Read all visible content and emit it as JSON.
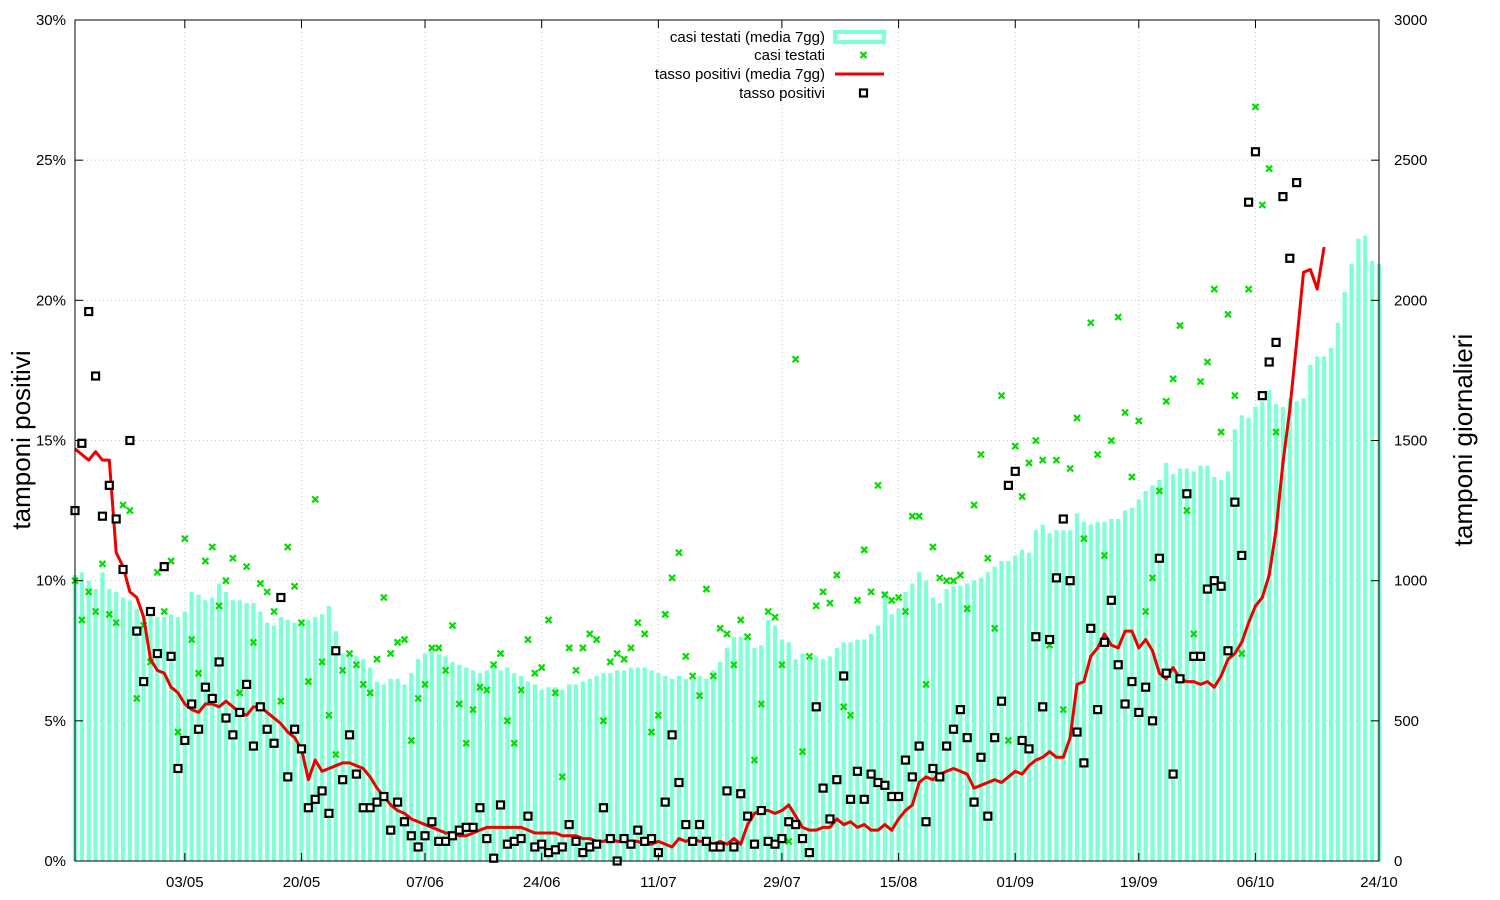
{
  "chart_data": {
    "type": "bar+line+scatter",
    "title": "",
    "ylabel_left": "tamponi positivi",
    "ylabel_right": "tamponi giornalieri",
    "ylim_left": [
      0,
      30
    ],
    "ylim_right": [
      0,
      3000
    ],
    "grid": true,
    "legend_position": "top-center",
    "x_start": "2020-04-17",
    "x_end": "2020-10-24",
    "x_ticks": [
      "03/05",
      "20/05",
      "07/06",
      "24/06",
      "11/07",
      "29/07",
      "15/08",
      "01/09",
      "19/09",
      "06/10",
      "24/10"
    ],
    "y_left_ticks": [
      "0%",
      "5%",
      "10%",
      "15%",
      "20%",
      "25%",
      "30%"
    ],
    "y_right_ticks": [
      "0",
      "500",
      "1000",
      "1500",
      "2000",
      "2500",
      "3000"
    ],
    "colors": {
      "casi_testati_media": "#7fffd4",
      "casi_testati": "#00dd00",
      "tasso_positivi_media": "#ee0000",
      "tasso_positivi": "#000000"
    },
    "series": [
      {
        "name": "casi testati (media 7gg)",
        "type": "bar",
        "axis": "right",
        "values": [
          1020,
          1030,
          1000,
          970,
          1030,
          970,
          960,
          940,
          930,
          900,
          880,
          880,
          870,
          870,
          880,
          870,
          890,
          960,
          950,
          930,
          940,
          990,
          960,
          930,
          930,
          920,
          920,
          890,
          850,
          840,
          870,
          860,
          850,
          840,
          860,
          870,
          880,
          910,
          820,
          740,
          730,
          730,
          720,
          690,
          640,
          630,
          650,
          650,
          630,
          670,
          720,
          740,
          750,
          740,
          730,
          710,
          700,
          690,
          680,
          670,
          680,
          690,
          680,
          690,
          670,
          660,
          640,
          630,
          610,
          620,
          620,
          610,
          630,
          630,
          640,
          650,
          660,
          670,
          670,
          680,
          680,
          690,
          690,
          690,
          680,
          670,
          660,
          650,
          660,
          650,
          650,
          660,
          650,
          680,
          710,
          760,
          800,
          800,
          790,
          760,
          770,
          860,
          840,
          790,
          780,
          720,
          740,
          720,
          730,
          720,
          730,
          760,
          780,
          780,
          790,
          790,
          810,
          840,
          960,
          880,
          900,
          960,
          990,
          1030,
          1000,
          940,
          920,
          970,
          980,
          980,
          990,
          1000,
          1010,
          1030,
          1050,
          1070,
          1070,
          1090,
          1110,
          1100,
          1180,
          1200,
          1170,
          1180,
          1180,
          1180,
          1240,
          1210,
          1200,
          1210,
          1210,
          1220,
          1220,
          1250,
          1260,
          1290,
          1320,
          1340,
          1360,
          1420,
          1380,
          1400,
          1400,
          1390,
          1410,
          1410,
          1370,
          1360,
          1390,
          1540,
          1590,
          1580,
          1620,
          1640,
          1680,
          1630,
          1620,
          1650,
          1640,
          1650,
          1770,
          1800,
          1800,
          1830,
          1920,
          2030,
          2130,
          2220,
          2230,
          2140,
          2130
        ]
      },
      {
        "name": "casi testati",
        "type": "scatter",
        "axis": "right",
        "marker": "x",
        "values": [
          1000,
          860,
          960,
          890,
          1060,
          880,
          850,
          1270,
          1250,
          580,
          840,
          710,
          1030,
          890,
          1070,
          460,
          1150,
          790,
          670,
          1070,
          1120,
          910,
          1000,
          1080,
          600,
          1050,
          780,
          990,
          960,
          890,
          570,
          1120,
          980,
          850,
          640,
          1290,
          710,
          520,
          380,
          680,
          740,
          700,
          630,
          600,
          720,
          940,
          740,
          780,
          790,
          430,
          580,
          630,
          760,
          760,
          680,
          840,
          560,
          420,
          540,
          620,
          610,
          700,
          740,
          500,
          420,
          610,
          790,
          670,
          690,
          860,
          600,
          300,
          760,
          680,
          760,
          810,
          790,
          500,
          710,
          740,
          720,
          760,
          850,
          810,
          460,
          520,
          880,
          1010,
          1100,
          730,
          660,
          590,
          970,
          660,
          830,
          810,
          700,
          860,
          800,
          360,
          560,
          890,
          870,
          700,
          70,
          1790,
          390,
          730,
          910,
          960,
          920,
          1020,
          550,
          520,
          930,
          1110,
          960,
          1340,
          950,
          930,
          940,
          890,
          1230,
          1230,
          630,
          1120,
          1010,
          1000,
          1000,
          1020,
          900,
          1270,
          1450,
          1080,
          830,
          1660,
          430,
          1480,
          1300,
          1420,
          1500,
          1430,
          770,
          1430,
          540,
          1400,
          1580,
          1150,
          1920,
          1450,
          1090,
          1500,
          1940,
          1600,
          1370,
          1570,
          890,
          1010,
          1320,
          1640,
          1720,
          1910,
          1250,
          810,
          1710,
          1780,
          2040,
          1530,
          1950,
          1660,
          740,
          2040,
          2690,
          2340,
          2470,
          1530
        ]
      },
      {
        "name": "tasso positivi (media 7gg)",
        "type": "line",
        "axis": "left",
        "values": [
          14.7,
          14.5,
          14.3,
          14.6,
          14.3,
          14.3,
          11.0,
          10.5,
          9.6,
          9.4,
          8.7,
          7.2,
          6.8,
          6.7,
          6.2,
          6.0,
          5.6,
          5.4,
          5.3,
          5.6,
          5.6,
          5.5,
          5.7,
          5.5,
          5.3,
          5.2,
          5.5,
          5.5,
          5.3,
          5.1,
          4.9,
          4.6,
          4.4,
          4.0,
          2.9,
          3.6,
          3.2,
          3.3,
          3.4,
          3.5,
          3.5,
          3.4,
          3.3,
          3.0,
          2.6,
          2.3,
          2.0,
          1.8,
          1.7,
          1.5,
          1.4,
          1.3,
          1.2,
          1.1,
          1.0,
          1.0,
          0.9,
          0.9,
          1.0,
          1.1,
          1.2,
          1.2,
          1.2,
          1.2,
          1.2,
          1.2,
          1.1,
          1.0,
          1.0,
          1.0,
          1.0,
          0.9,
          0.9,
          0.9,
          0.8,
          0.8,
          0.7,
          0.7,
          0.8,
          0.7,
          0.7,
          0.7,
          0.7,
          0.6,
          0.6,
          0.7,
          0.6,
          0.5,
          0.8,
          0.7,
          0.8,
          0.7,
          0.7,
          0.6,
          0.7,
          0.6,
          0.8,
          0.6,
          1.3,
          1.7,
          1.8,
          1.8,
          1.7,
          1.8,
          2.0,
          1.6,
          1.2,
          1.1,
          1.1,
          1.2,
          1.2,
          1.5,
          1.3,
          1.4,
          1.2,
          1.3,
          1.1,
          1.1,
          1.3,
          1.1,
          1.5,
          1.8,
          2.0,
          2.8,
          3.0,
          2.9,
          3.1,
          3.2,
          3.3,
          3.2,
          3.1,
          2.6,
          2.7,
          2.8,
          2.9,
          2.8,
          3.0,
          3.2,
          3.1,
          3.4,
          3.6,
          3.7,
          3.9,
          3.7,
          3.7,
          4.4,
          6.3,
          6.4,
          7.3,
          7.6,
          8.1,
          7.7,
          7.6,
          8.2,
          8.2,
          7.6,
          7.9,
          7.5,
          6.7,
          6.5,
          6.9,
          6.5,
          6.4,
          6.4,
          6.3,
          6.4,
          6.2,
          6.6,
          7.2,
          7.4,
          7.8,
          8.5,
          9.1,
          9.4,
          10.2,
          11.8,
          14.2,
          16.1,
          18.5,
          21.0,
          21.1,
          20.4,
          21.9
        ]
      },
      {
        "name": "tasso positivi",
        "type": "scatter",
        "axis": "left",
        "marker": "square",
        "values": [
          12.5,
          14.9,
          19.6,
          17.3,
          12.3,
          13.4,
          12.2,
          10.4,
          15.0,
          8.2,
          6.4,
          8.9,
          7.4,
          10.5,
          7.3,
          3.3,
          4.3,
          5.6,
          4.7,
          6.2,
          5.8,
          7.1,
          5.1,
          4.5,
          5.3,
          6.3,
          4.1,
          5.5,
          4.7,
          4.2,
          9.4,
          3.0,
          4.7,
          4.0,
          1.9,
          2.2,
          2.5,
          1.7,
          7.5,
          2.9,
          4.5,
          3.1,
          1.9,
          1.9,
          2.1,
          2.3,
          1.1,
          2.1,
          1.4,
          0.9,
          0.5,
          0.9,
          1.4,
          0.7,
          0.7,
          0.9,
          1.1,
          1.2,
          1.2,
          1.9,
          0.8,
          0.1,
          2.0,
          0.6,
          0.7,
          0.8,
          1.6,
          0.5,
          0.6,
          0.3,
          0.4,
          0.5,
          1.3,
          0.7,
          0.3,
          0.5,
          0.6,
          1.9,
          0.8,
          0.0,
          0.8,
          0.6,
          1.1,
          0.7,
          0.8,
          0.3,
          2.1,
          4.5,
          2.8,
          1.3,
          0.7,
          1.3,
          0.7,
          0.5,
          0.5,
          2.5,
          0.5,
          2.4,
          1.6,
          0.6,
          1.8,
          0.7,
          0.6,
          0.8,
          1.4,
          1.3,
          0.8,
          0.3,
          5.5,
          2.6,
          1.5,
          2.9,
          6.6,
          2.2,
          3.2,
          2.2,
          3.1,
          2.8,
          2.7,
          2.3,
          2.3,
          3.6,
          3.0,
          4.1,
          1.4,
          3.3,
          3.0,
          4.1,
          4.7,
          5.4,
          4.4,
          2.1,
          3.7,
          1.6,
          4.4,
          5.7,
          13.4,
          13.9,
          4.3,
          4.0,
          8.0,
          5.5,
          7.9,
          10.1,
          12.2,
          10.0,
          4.6,
          3.5,
          8.3,
          5.4,
          7.8,
          9.3,
          7.0,
          5.6,
          6.4,
          5.3,
          6.2,
          5.0,
          10.8,
          6.7,
          3.1,
          6.5,
          13.1,
          7.3,
          7.3,
          9.7,
          10.0,
          9.8,
          7.5,
          12.8,
          10.9,
          23.5,
          25.3,
          16.6,
          17.8,
          18.5,
          23.7,
          21.5,
          24.2
        ]
      }
    ]
  }
}
